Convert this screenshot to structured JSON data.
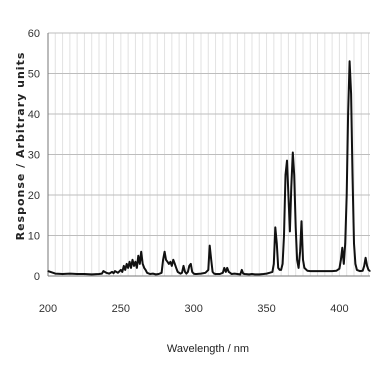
{
  "chart_data": {
    "type": "line",
    "title": "",
    "xlabel": "Wavelength / nm",
    "ylabel": "Response / Arbitrary units",
    "xlim": [
      200,
      421
    ],
    "ylim": [
      0,
      60
    ],
    "x_ticks": [
      200,
      250,
      300,
      350,
      400
    ],
    "y_ticks": [
      0,
      10,
      20,
      30,
      40,
      50,
      60
    ],
    "grid": true,
    "series": [
      {
        "color": "#111111",
        "x": [
          200,
          205,
          210,
          215,
          220,
          225,
          230,
          235,
          237,
          238,
          240,
          242,
          244,
          245,
          246,
          248,
          250,
          251,
          252,
          253,
          254,
          255,
          256,
          257,
          258,
          259,
          260,
          261,
          262,
          263,
          264,
          265,
          266,
          267,
          268,
          270,
          272,
          274,
          276,
          278,
          279,
          280,
          281,
          282,
          283,
          284,
          285,
          286,
          287,
          288,
          289,
          290,
          291,
          292,
          293,
          294,
          295,
          296,
          297,
          298,
          299,
          300,
          301,
          302,
          305,
          308,
          310,
          311,
          312,
          313,
          314,
          315,
          318,
          320,
          321,
          322,
          323,
          324,
          325,
          326,
          328,
          330,
          332,
          333,
          334,
          335,
          338,
          340,
          342,
          345,
          348,
          350,
          352,
          354,
          355,
          356,
          357,
          358,
          359,
          360,
          361,
          362,
          363,
          364,
          365,
          366,
          367,
          368,
          369,
          370,
          371,
          372,
          373,
          374,
          375,
          376,
          378,
          380,
          385,
          390,
          395,
          398,
          400,
          401,
          402,
          403,
          404,
          405,
          406,
          407,
          408,
          409,
          410,
          411,
          412,
          414,
          416,
          417,
          418,
          419,
          420,
          421
        ],
        "y": [
          1.2,
          0.6,
          0.5,
          0.6,
          0.5,
          0.5,
          0.4,
          0.5,
          0.6,
          1.2,
          0.8,
          0.6,
          1.0,
          0.7,
          1.2,
          0.8,
          1.5,
          1.0,
          2.5,
          1.5,
          3.0,
          2.0,
          3.5,
          2.0,
          4.0,
          2.5,
          3.5,
          2.0,
          5.0,
          3.0,
          6.0,
          3.0,
          2.0,
          1.5,
          0.8,
          0.5,
          0.6,
          0.4,
          0.5,
          0.8,
          4.0,
          6.0,
          4.0,
          3.5,
          3.0,
          3.5,
          2.5,
          4.0,
          3.0,
          2.0,
          1.0,
          0.8,
          0.6,
          0.8,
          2.5,
          1.0,
          0.6,
          1.0,
          2.5,
          3.0,
          1.0,
          0.6,
          0.5,
          0.5,
          0.6,
          0.8,
          1.5,
          7.5,
          4.0,
          1.0,
          0.6,
          0.5,
          0.5,
          0.8,
          2.0,
          1.0,
          2.0,
          1.0,
          0.8,
          0.5,
          0.6,
          0.5,
          0.4,
          1.5,
          0.6,
          0.5,
          0.4,
          0.5,
          0.4,
          0.4,
          0.5,
          0.6,
          0.8,
          1.0,
          3.0,
          12.0,
          8.0,
          2.0,
          1.5,
          1.5,
          3.0,
          10.0,
          25.0,
          28.5,
          20.0,
          11.0,
          22.0,
          30.5,
          25.0,
          12.0,
          4.0,
          2.0,
          6.0,
          13.5,
          4.0,
          2.0,
          1.3,
          1.2,
          1.2,
          1.2,
          1.2,
          1.3,
          1.8,
          4.0,
          7.0,
          3.0,
          8.0,
          20.0,
          40.0,
          53.0,
          45.0,
          25.0,
          8.0,
          3.0,
          1.5,
          1.2,
          1.3,
          2.5,
          4.5,
          2.5,
          1.5,
          1.2
        ]
      }
    ]
  }
}
